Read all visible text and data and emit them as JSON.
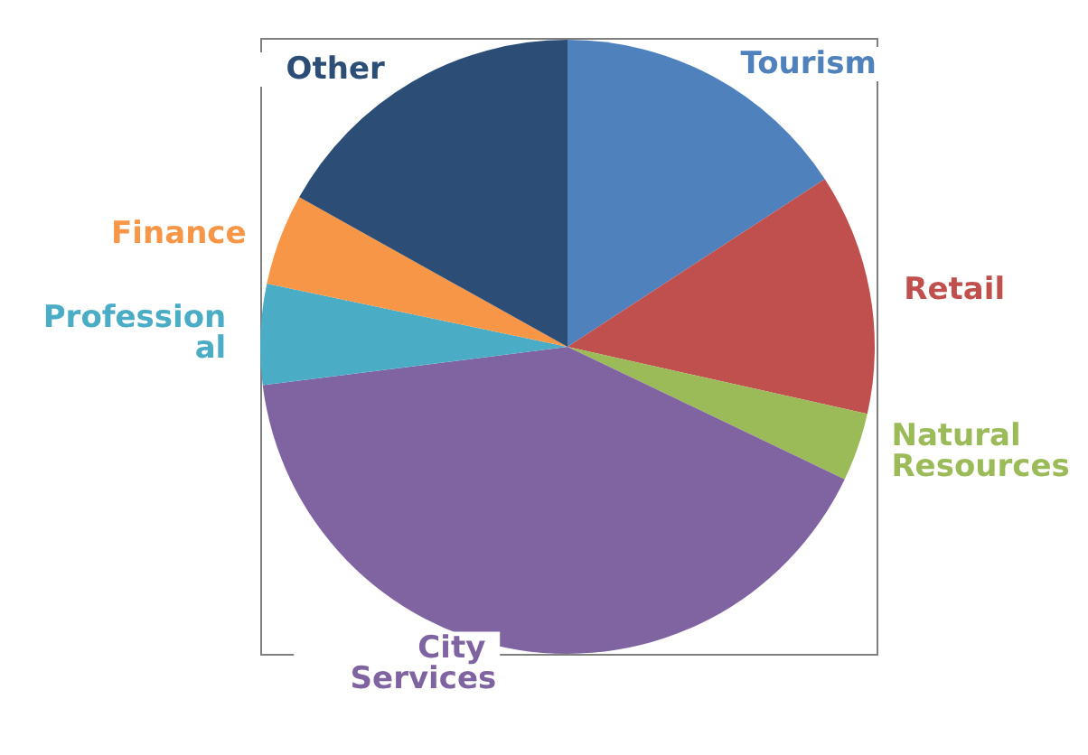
{
  "chart_data": {
    "type": "pie",
    "categories": [
      "Tourism",
      "Retail",
      "Natural Resources",
      "City Services",
      "Professional",
      "Finance",
      "Other"
    ],
    "values": [
      15.8,
      12.7,
      3.6,
      40.9,
      5.3,
      4.8,
      16.9
    ],
    "colors": [
      "#4f81bd",
      "#c0504d",
      "#9bbb59",
      "#8064a2",
      "#4bacc6",
      "#f79646",
      "#2c4d75"
    ],
    "legend": false
  }
}
